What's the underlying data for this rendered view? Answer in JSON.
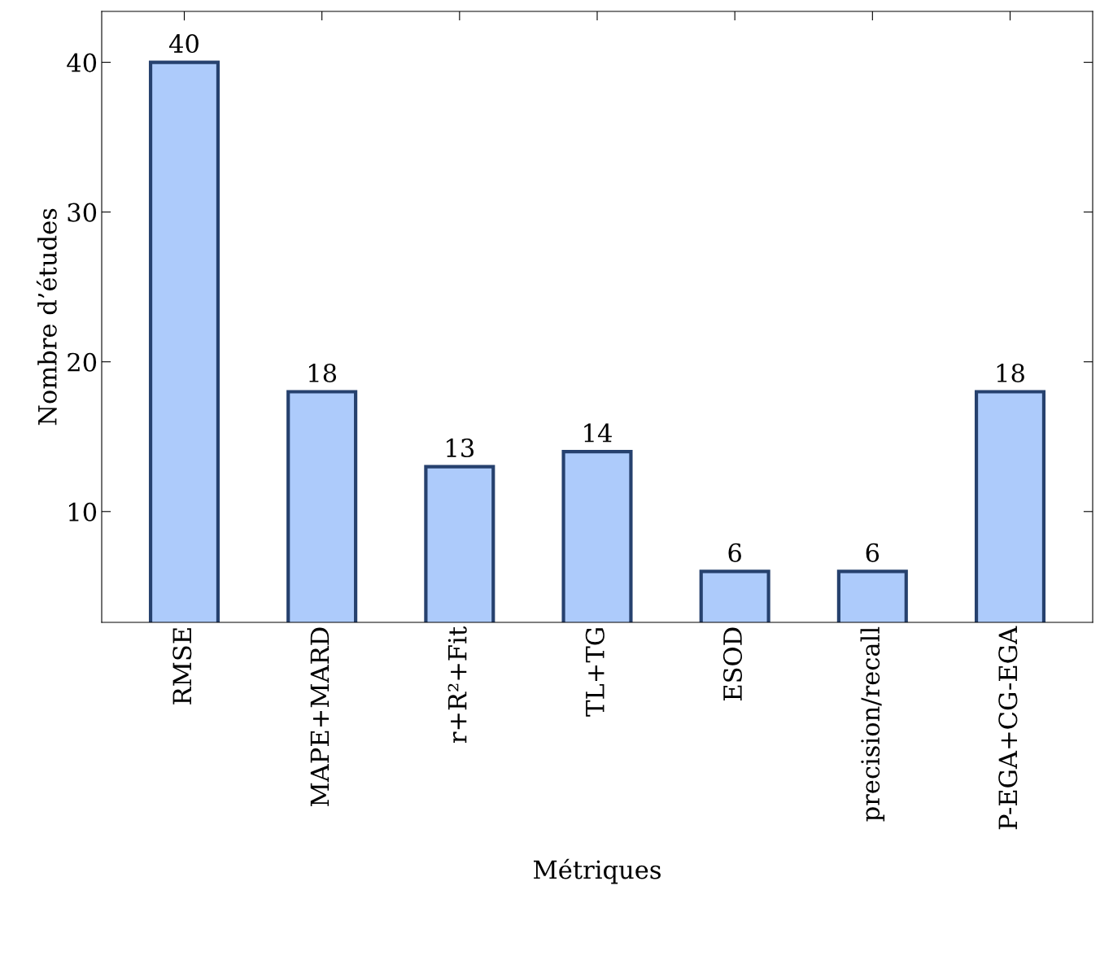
{
  "chart_data": {
    "type": "bar",
    "xlabel": "Métriques",
    "ylabel": "Nombre d’études",
    "categories": [
      "RMSE",
      "MAPE+MARD",
      "r+R²+Fit",
      "TL+TG",
      "ESOD",
      "precision/recall",
      "P-EGA+CG-EGA"
    ],
    "values": [
      40,
      18,
      13,
      14,
      6,
      6,
      18
    ],
    "color": "#adcbfb",
    "ylim": [
      2.6,
      43.4
    ],
    "yticks": [
      10,
      20,
      30,
      40
    ],
    "grid": false,
    "data_labels": true
  }
}
